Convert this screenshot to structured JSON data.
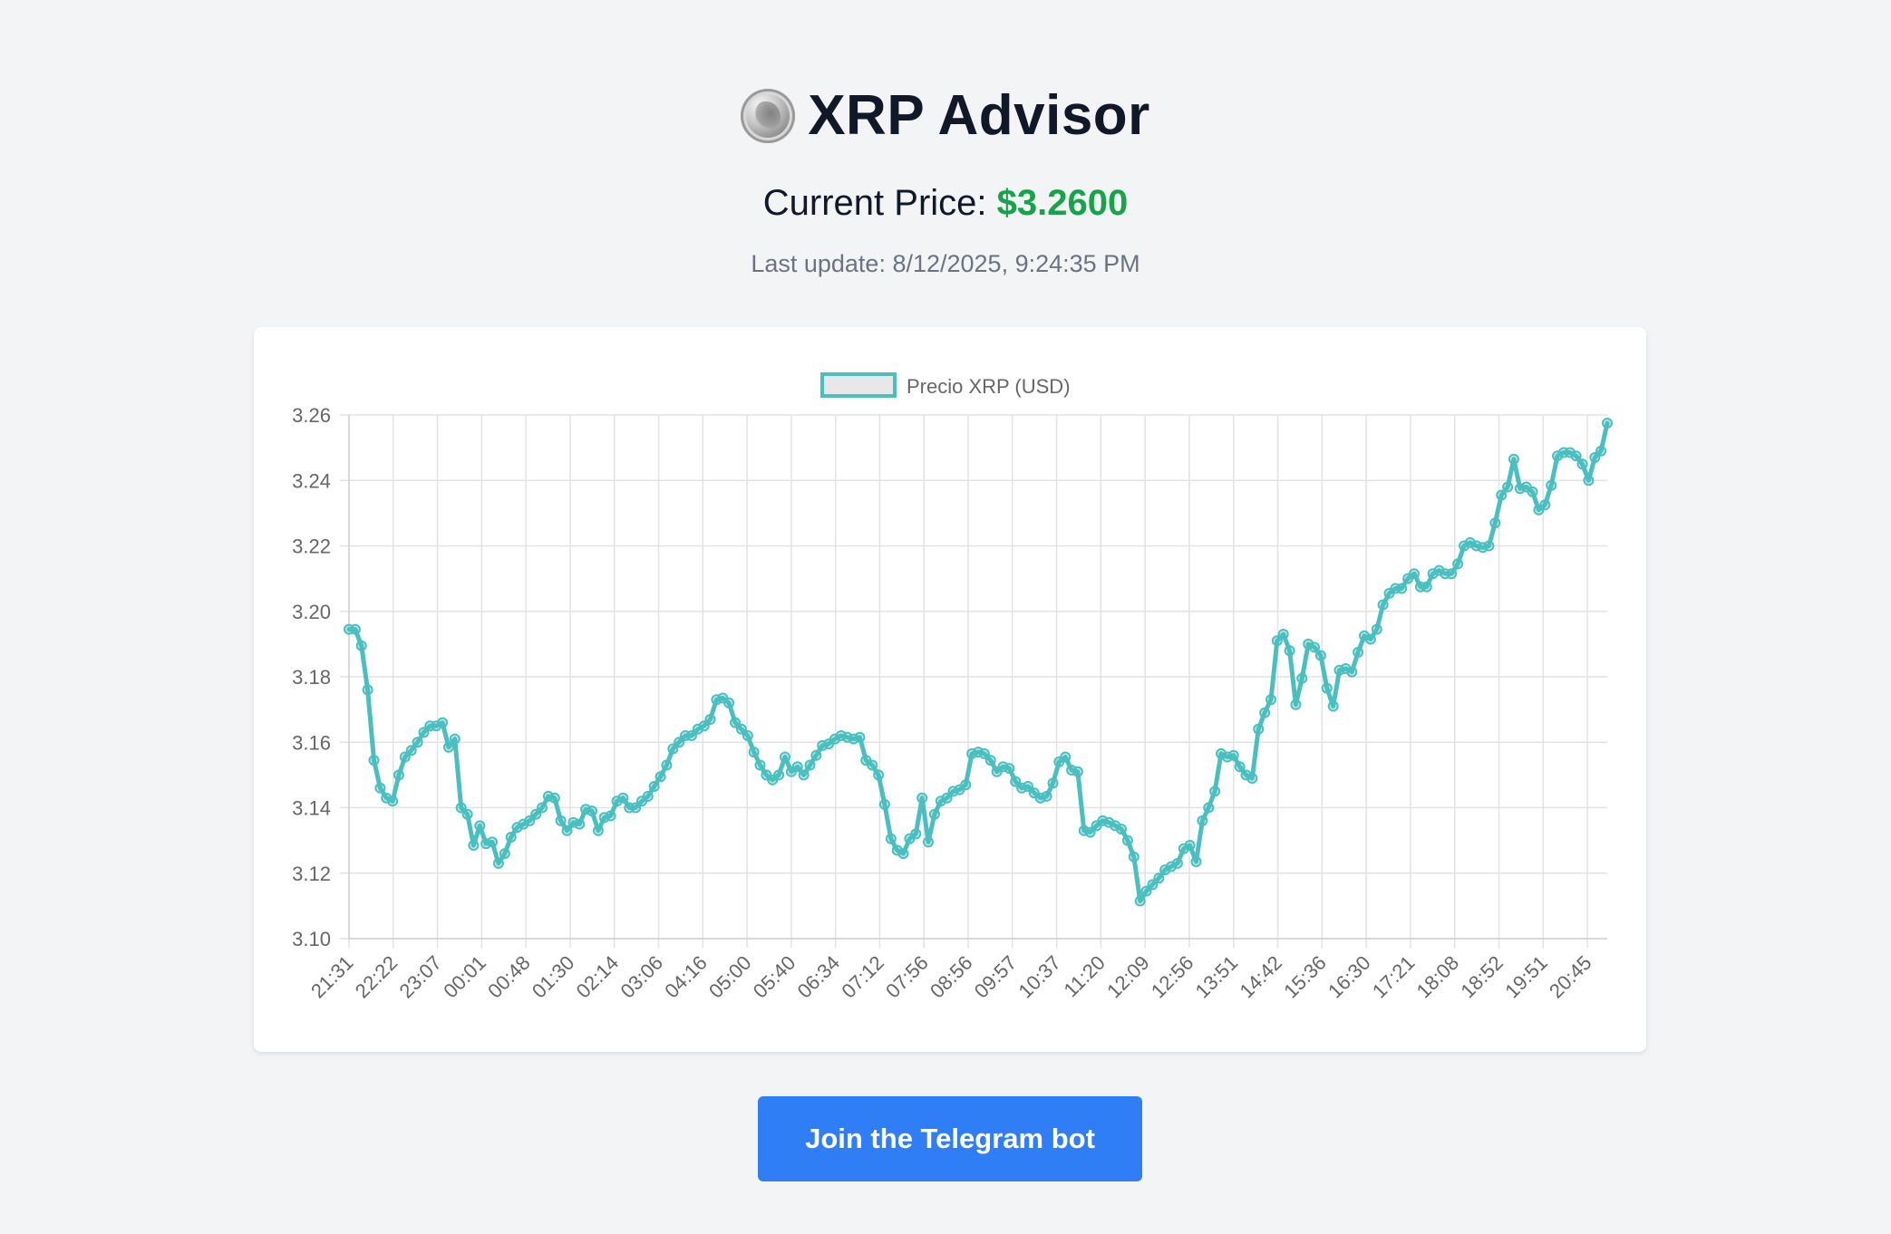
{
  "app": {
    "title": "XRP Advisor",
    "coin_icon": "xrp-coin-icon"
  },
  "price": {
    "label": "Current Price: ",
    "value": "$3.2600"
  },
  "update": {
    "text": "Last update: 8/12/2025, 9:24:35 PM"
  },
  "cta": {
    "label": "Join the Telegram bot"
  },
  "colors": {
    "accent": "#4bbfbf",
    "price": "#16a34a",
    "button": "#2f7ef6",
    "grid": "#e5e5e5"
  },
  "chart_data": {
    "type": "line",
    "legend": "Precio XRP (USD)",
    "legend_position": "top-center",
    "ylim": [
      3.1,
      3.26
    ],
    "yticks": [
      "3.26",
      "3.24",
      "3.22",
      "3.20",
      "3.18",
      "3.16",
      "3.14",
      "3.12",
      "3.10"
    ],
    "xticks": [
      "21:31",
      "22:22",
      "23:07",
      "00:01",
      "00:48",
      "01:30",
      "02:14",
      "03:06",
      "04:16",
      "05:00",
      "05:40",
      "06:34",
      "07:12",
      "07:56",
      "08:56",
      "09:57",
      "10:37",
      "11:20",
      "12:09",
      "12:56",
      "13:51",
      "14:42",
      "15:36",
      "16:30",
      "17:21",
      "18:08",
      "18:52",
      "19:51",
      "20:45"
    ],
    "values": [
      3.1945,
      3.1945,
      3.1895,
      3.176,
      3.1545,
      3.146,
      3.143,
      3.142,
      3.15,
      3.1555,
      3.1575,
      3.16,
      3.163,
      3.165,
      3.165,
      3.166,
      3.1585,
      3.161,
      3.14,
      3.138,
      3.1285,
      3.1345,
      3.129,
      3.1295,
      3.123,
      3.126,
      3.131,
      3.134,
      3.135,
      3.136,
      3.138,
      3.14,
      3.1435,
      3.143,
      3.136,
      3.133,
      3.1355,
      3.135,
      3.1395,
      3.139,
      3.133,
      3.137,
      3.1375,
      3.142,
      3.143,
      3.14,
      3.14,
      3.142,
      3.1435,
      3.1465,
      3.1495,
      3.153,
      3.158,
      3.16,
      3.162,
      3.162,
      3.164,
      3.165,
      3.167,
      3.173,
      3.1735,
      3.172,
      3.166,
      3.164,
      3.162,
      3.157,
      3.153,
      3.15,
      3.1485,
      3.15,
      3.1555,
      3.151,
      3.1525,
      3.15,
      3.153,
      3.156,
      3.159,
      3.1595,
      3.161,
      3.162,
      3.1615,
      3.161,
      3.1615,
      3.1545,
      3.153,
      3.15,
      3.141,
      3.1305,
      3.127,
      3.126,
      3.1305,
      3.132,
      3.143,
      3.1295,
      3.138,
      3.142,
      3.143,
      3.145,
      3.1455,
      3.147,
      3.1565,
      3.157,
      3.1565,
      3.1545,
      3.151,
      3.1525,
      3.152,
      3.148,
      3.146,
      3.1465,
      3.1445,
      3.143,
      3.1435,
      3.1475,
      3.154,
      3.1555,
      3.1515,
      3.151,
      3.133,
      3.1325,
      3.1345,
      3.136,
      3.1355,
      3.1345,
      3.1335,
      3.13,
      3.125,
      3.1115,
      3.1145,
      3.1165,
      3.1185,
      3.121,
      3.122,
      3.123,
      3.1275,
      3.1285,
      3.1235,
      3.136,
      3.14,
      3.145,
      3.1565,
      3.1555,
      3.156,
      3.1525,
      3.15,
      3.149,
      3.164,
      3.169,
      3.173,
      3.191,
      3.193,
      3.188,
      3.1715,
      3.1795,
      3.19,
      3.189,
      3.1865,
      3.1765,
      3.171,
      3.182,
      3.1825,
      3.1815,
      3.1875,
      3.1925,
      3.1915,
      3.1945,
      3.202,
      3.2055,
      3.207,
      3.207,
      3.21,
      3.2115,
      3.2075,
      3.2075,
      3.2115,
      3.2125,
      3.2115,
      3.2115,
      3.2145,
      3.22,
      3.221,
      3.22,
      3.2195,
      3.22,
      3.227,
      3.2355,
      3.238,
      3.2465,
      3.2375,
      3.238,
      3.2365,
      3.231,
      3.2325,
      3.2385,
      3.2475,
      3.2485,
      3.2485,
      3.2475,
      3.245,
      3.24,
      3.247,
      3.249,
      3.2575
    ]
  }
}
